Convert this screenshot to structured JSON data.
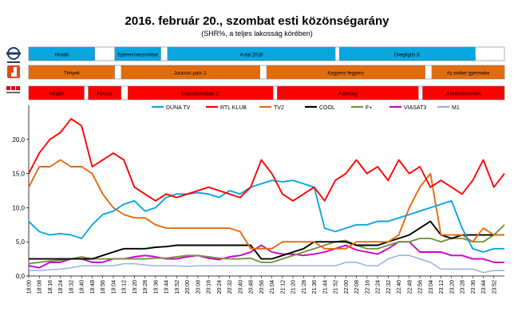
{
  "header": {
    "title": "2016. február 20., szombat esti közönségarány",
    "subtitle": "(SHR%, a teljes lakosság körében)"
  },
  "schedules": [
    {
      "channel": "DUNA TV",
      "color": "#0aa6e0",
      "programs": [
        {
          "label": "Híradó",
          "start": "18:00",
          "end": "18:50"
        },
        {
          "label": "Szerencseszombat",
          "start": "19:05",
          "end": "19:40"
        },
        {
          "label": "A dal 2016",
          "start": "19:45",
          "end": "21:52"
        },
        {
          "label": "Üvegtigris 3.",
          "start": "21:55",
          "end": "23:38"
        }
      ]
    },
    {
      "channel": "TV2",
      "color": "#e36c0a",
      "programs": [
        {
          "label": "Tények",
          "start": "18:00",
          "end": "19:05"
        },
        {
          "label": "Jurassic park 3.",
          "start": "19:10",
          "end": "20:55"
        },
        {
          "label": "Kegyenc fegyenc",
          "start": "21:00",
          "end": "23:00"
        },
        {
          "label": "Az ember gyermeke",
          "start": "23:05",
          "end": "24:00"
        }
      ]
    },
    {
      "channel": "RTL KLUB",
      "color": "#ff0000",
      "programs": [
        {
          "label": "Híradó",
          "start": "18:00",
          "end": "18:42"
        },
        {
          "label": "Fókusz",
          "start": "18:45",
          "end": "19:10"
        },
        {
          "label": "Csúcsformában 2.",
          "start": "19:15",
          "end": "21:05"
        },
        {
          "label": "A bérceg",
          "start": "21:08",
          "end": "22:55"
        },
        {
          "label": "A rettenthetetlen",
          "start": "22:58",
          "end": "24:00"
        }
      ]
    }
  ],
  "chart_data": {
    "type": "line",
    "xlabel": "",
    "ylabel": "",
    "ylim": [
      0,
      25
    ],
    "yticks": [
      "0,0",
      "5,0",
      "10,0",
      "15,0",
      "20,0"
    ],
    "grid": false,
    "legend_position": "top",
    "x_start": "18:00",
    "x_end": "24:00",
    "x": [
      "18:00",
      "18:08",
      "18:16",
      "18:24",
      "18:32",
      "18:40",
      "18:48",
      "18:56",
      "19:04",
      "19:12",
      "19:20",
      "19:28",
      "19:36",
      "19:44",
      "19:52",
      "20:00",
      "20:08",
      "20:16",
      "20:24",
      "20:32",
      "20:40",
      "20:48",
      "20:56",
      "21:04",
      "21:12",
      "21:20",
      "21:28",
      "21:36",
      "21:44",
      "21:52",
      "22:00",
      "22:08",
      "22:16",
      "22:24",
      "22:32",
      "22:40",
      "22:48",
      "22:56",
      "23:04",
      "23:12",
      "23:20",
      "23:28",
      "23:36",
      "23:44",
      "23:52",
      "24:00"
    ],
    "series": [
      {
        "name": "DUNA TV",
        "color": "#0aa6e0",
        "values": [
          8,
          6.5,
          6,
          6.2,
          6,
          5.5,
          7.5,
          9,
          9.5,
          10.5,
          11,
          9.5,
          10,
          11.5,
          12,
          12,
          12.2,
          12,
          11.5,
          12.5,
          12,
          13,
          13.5,
          14,
          13.8,
          14,
          13.5,
          13,
          7,
          6.5,
          7,
          7.5,
          7.5,
          8,
          8,
          8.5,
          9,
          9.5,
          10,
          10.5,
          11,
          7,
          4,
          3.5,
          4,
          4
        ]
      },
      {
        "name": "RTL KLUB",
        "color": "#ff0000",
        "values": [
          15,
          18,
          20,
          21,
          23,
          22,
          16,
          17,
          18,
          17,
          13,
          12,
          11,
          12,
          11.5,
          12,
          12.5,
          13,
          12.5,
          12,
          11.5,
          13,
          17,
          15,
          12,
          11,
          12,
          13,
          11,
          14,
          15,
          17,
          15,
          16,
          14,
          17,
          15,
          16,
          13,
          14,
          13,
          12,
          14,
          17,
          13,
          15
        ]
      },
      {
        "name": "TV2",
        "color": "#e36c0a",
        "values": [
          13,
          16,
          16,
          17,
          16,
          16,
          15,
          12,
          10,
          9,
          8.5,
          8.5,
          7.5,
          7,
          7,
          7,
          7,
          7,
          7,
          7,
          6.5,
          4,
          4,
          4,
          5,
          5,
          5,
          5,
          4,
          4,
          4,
          5,
          5,
          5,
          5,
          6,
          10,
          13,
          15,
          6,
          6,
          6,
          5,
          7,
          6,
          6
        ]
      },
      {
        "name": "COOL",
        "color": "#000000",
        "values": [
          2.5,
          2.5,
          2.5,
          2.5,
          2.5,
          2.5,
          2.5,
          3,
          3.5,
          4,
          4,
          4,
          4.2,
          4.3,
          4.5,
          4.5,
          4.5,
          4.5,
          4.5,
          4.5,
          4.5,
          4.5,
          2.5,
          2.5,
          3,
          3.5,
          4,
          5,
          5,
          5,
          5,
          4.5,
          4.5,
          4.5,
          5,
          5.5,
          6,
          7,
          8,
          6,
          5.5,
          6,
          6,
          6,
          6,
          6
        ]
      },
      {
        "name": "F+",
        "color": "#77933c",
        "values": [
          1.8,
          2,
          2.2,
          2.3,
          2.5,
          2.8,
          2.5,
          2.5,
          2.5,
          2.5,
          2.5,
          2.5,
          2.6,
          2.6,
          2.8,
          3,
          3,
          2.8,
          2.6,
          2.5,
          2.5,
          2.6,
          2,
          2,
          2.5,
          3,
          3.5,
          4,
          4.5,
          5,
          5.2,
          4.5,
          4,
          4,
          4.5,
          5,
          5,
          5.5,
          5.5,
          5,
          5.5,
          5.5,
          5,
          5,
          6,
          7.5
        ]
      },
      {
        "name": "VIASAT3",
        "color": "#cc00cc",
        "values": [
          1.5,
          1.2,
          2,
          2,
          2.5,
          2.5,
          2,
          2,
          2.5,
          2.5,
          2.8,
          3,
          2.8,
          2.5,
          2.5,
          2.8,
          3,
          2.6,
          2.4,
          2.8,
          3,
          3.5,
          4.5,
          3.5,
          3.2,
          3.2,
          3,
          3.2,
          3.5,
          4,
          4.5,
          3.8,
          3.5,
          3.2,
          4,
          5,
          5,
          3.5,
          3.5,
          3.5,
          3,
          3,
          2.5,
          2.5,
          2,
          2
        ]
      },
      {
        "name": "M1",
        "color": "#95b3d7",
        "values": [
          0.8,
          0.8,
          0.9,
          1,
          1.2,
          1.5,
          1.5,
          1.5,
          1.5,
          1.8,
          1.8,
          1.6,
          1.5,
          1.5,
          1.5,
          1.4,
          1.5,
          1.5,
          1.5,
          1.5,
          1.5,
          1.5,
          1.5,
          1.5,
          1.5,
          1.5,
          1.5,
          1.5,
          1.5,
          1.5,
          2,
          2,
          1.5,
          1.5,
          2.5,
          3,
          3,
          2.5,
          2,
          1,
          1,
          1,
          1,
          0.5,
          0.8,
          0.8
        ]
      }
    ]
  }
}
